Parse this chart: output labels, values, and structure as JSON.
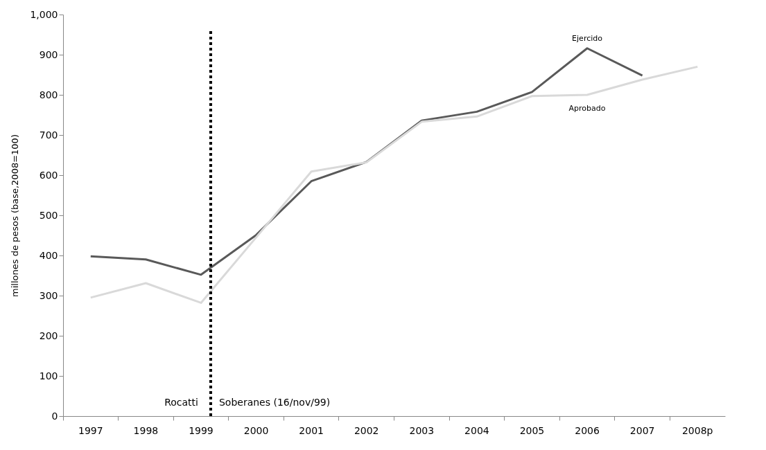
{
  "chart_data": {
    "type": "line",
    "ylabel": "millones de pesos (base,2008=100)",
    "categories": [
      "1997",
      "1998",
      "1999",
      "2000",
      "2001",
      "2002",
      "2003",
      "2004",
      "2005",
      "2006",
      "2007",
      "2008p"
    ],
    "series": [
      {
        "name": "Ejercido",
        "color": "#595959",
        "values": [
          398,
          390,
          352,
          451,
          585,
          633,
          736,
          758,
          807,
          916,
          848,
          null
        ]
      },
      {
        "name": "Aprobado",
        "color": "#d9d9d9",
        "values": [
          295,
          331,
          282,
          445,
          609,
          632,
          733,
          746,
          797,
          800,
          838,
          870
        ]
      }
    ],
    "ylim": [
      0,
      1000
    ],
    "yticks": [
      0,
      100,
      200,
      300,
      400,
      500,
      600,
      700,
      800,
      900,
      {
        "value": 1000,
        "label": "1,000"
      }
    ],
    "ref_lines": [
      {
        "axis": "x",
        "value": "1999",
        "color": "#000000",
        "line_style": "dotted"
      }
    ],
    "annotations": [
      "Rocatti",
      "Soberanes (16/nov/99)"
    ],
    "grid": false,
    "legend": false,
    "marker": "none",
    "line_style": "solid"
  }
}
